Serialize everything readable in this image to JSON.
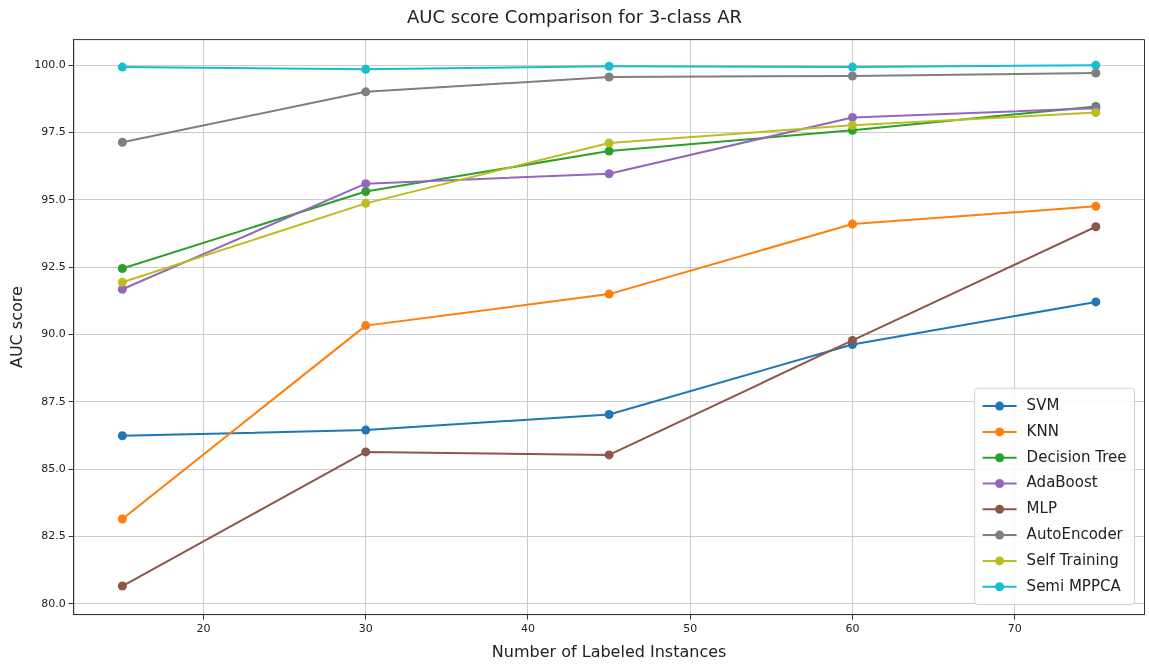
{
  "chart_data": {
    "type": "line",
    "title": "AUC score Comparison for 3-class AR",
    "xlabel": "Number of Labeled Instances",
    "ylabel": "AUC score",
    "x": [
      15,
      30,
      45,
      60,
      75
    ],
    "series": [
      {
        "name": "SVM",
        "color": "#1f77b4",
        "values": [
          86.24,
          86.45,
          87.03,
          89.63,
          91.21
        ]
      },
      {
        "name": "KNN",
        "color": "#ff7f0e",
        "values": [
          83.15,
          90.33,
          91.5,
          94.1,
          94.76
        ]
      },
      {
        "name": "Decision Tree",
        "color": "#2ca02c",
        "values": [
          92.45,
          95.31,
          96.81,
          97.58,
          98.47
        ]
      },
      {
        "name": "AdaBoost",
        "color": "#9467bd",
        "values": [
          91.68,
          95.6,
          95.97,
          98.06,
          98.4
        ]
      },
      {
        "name": "MLP",
        "color": "#8c564b",
        "values": [
          80.66,
          85.64,
          85.53,
          89.78,
          94.0
        ]
      },
      {
        "name": "AutoEncoder",
        "color": "#7f7f7f",
        "values": [
          97.14,
          99.01,
          99.56,
          99.6,
          99.71
        ]
      },
      {
        "name": "Self Training",
        "color": "#bcbd22",
        "values": [
          91.94,
          94.87,
          97.11,
          97.77,
          98.24
        ]
      },
      {
        "name": "Semi MPPCA",
        "color": "#17becf",
        "values": [
          99.93,
          99.85,
          99.96,
          99.93,
          100.0
        ]
      }
    ],
    "xlim": [
      12,
      78
    ],
    "xticks": [
      20,
      30,
      40,
      50,
      60,
      70
    ],
    "ylim": [
      79.6,
      100.95
    ],
    "yticks": [
      {
        "value": 80,
        "label": "80.0"
      },
      {
        "value": 82.5,
        "label": "82.5"
      },
      {
        "value": 85,
        "label": "85.0"
      },
      {
        "value": 87.5,
        "label": "87.5"
      },
      {
        "value": 90,
        "label": "90.0"
      },
      {
        "value": 92.5,
        "label": "92.5"
      },
      {
        "value": 95,
        "label": "95.0"
      },
      {
        "value": 97.5,
        "label": "97.5"
      },
      {
        "value": 100,
        "label": "100.0"
      }
    ],
    "grid": true,
    "legend": "bottom right",
    "marker": "circle",
    "line_style": "solid"
  }
}
